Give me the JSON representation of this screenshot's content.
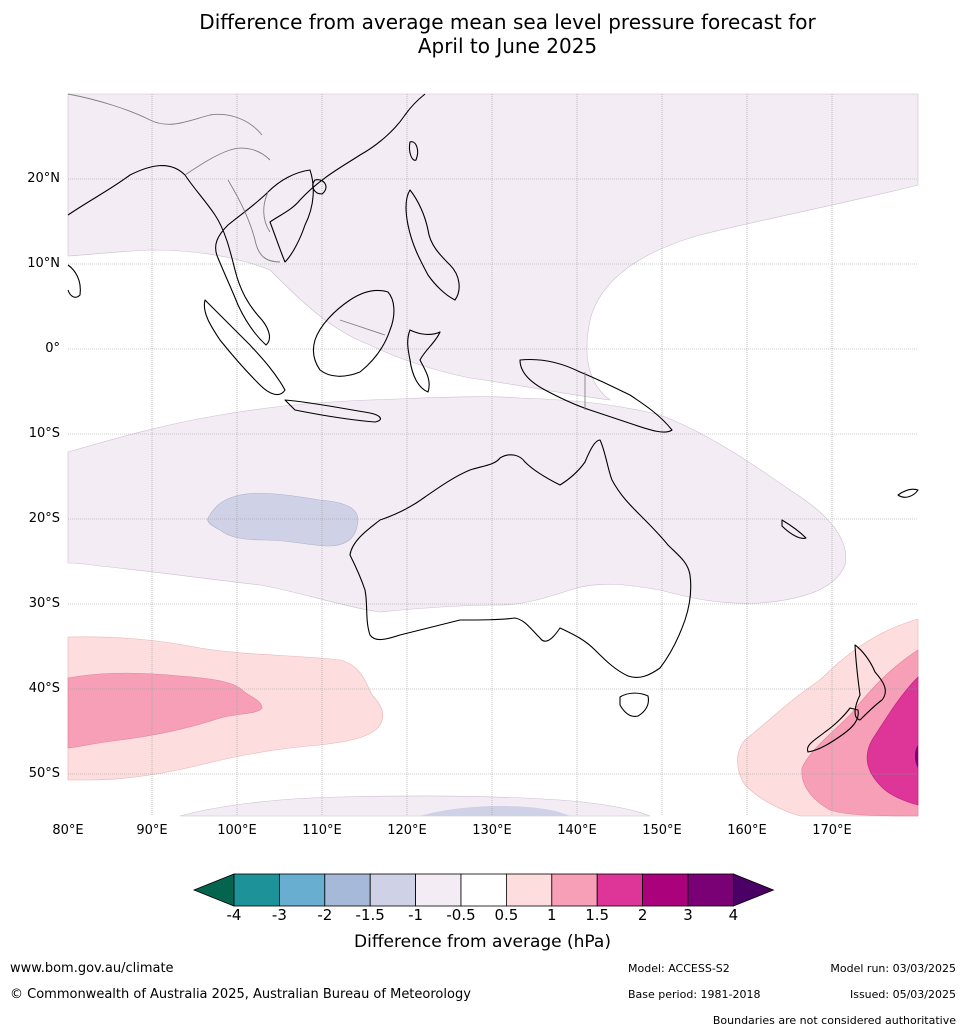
{
  "title": {
    "line1": "Difference from average mean sea level pressure forecast for",
    "line2": "April to June 2025"
  },
  "map": {
    "lat_labels": [
      "20°N",
      "10°N",
      "0°",
      "10°S",
      "20°S",
      "30°S",
      "40°S",
      "50°S"
    ],
    "lon_labels": [
      "80°E",
      "90°E",
      "100°E",
      "110°E",
      "120°E",
      "130°E",
      "140°E",
      "150°E",
      "160°E",
      "170°E"
    ],
    "anomaly_regions": [
      {
        "category": "-1 to -0.5",
        "color": "#f3ecf4",
        "description": "North-west Pacific / South China Sea band"
      },
      {
        "category": "-1 to -0.5",
        "color": "#f3ecf4",
        "description": "Indian Ocean to Coral Sea band"
      },
      {
        "category": "-1.5 to -1",
        "color": "#cfd1e6",
        "description": "Eastern Indian Ocean near 20°S"
      },
      {
        "category": "0.5 to 1",
        "color": "#fddddd",
        "description": "Southern Indian Ocean near 40°S"
      },
      {
        "category": "1 to 1.5",
        "color": "#f89fb8",
        "description": "Southern Indian Ocean near 40°S"
      },
      {
        "category": "0.5 to 1",
        "color": "#fddddd",
        "description": "Tasman Sea / New Zealand"
      },
      {
        "category": "1 to 1.5",
        "color": "#f89fb8",
        "description": "East of New Zealand"
      },
      {
        "category": "1.5 to 2",
        "color": "#dd3598",
        "description": "East of New Zealand"
      }
    ]
  },
  "colorbar": {
    "title": "Difference from average (hPa)",
    "ticks": [
      "-4",
      "-3",
      "-2",
      "-1.5",
      "-1",
      "-0.5",
      "0.5",
      "1",
      "1.5",
      "2",
      "3",
      "4"
    ],
    "colors": {
      "below": "#04654f",
      "bins": [
        "#1d9298",
        "#68aed0",
        "#a6b9d8",
        "#cfd1e6",
        "#f3ecf4",
        "#ffffff",
        "#fddddd",
        "#f89fb8",
        "#dd3598",
        "#ac017d",
        "#7a0075"
      ],
      "above": "#4b0066"
    }
  },
  "footer": {
    "website": "www.bom.gov.au/climate",
    "copyright": "© Commonwealth of Australia 2025, Australian Bureau of Meteorology",
    "model": "Model: ACCESS-S2",
    "base_period": "Base period: 1981-2018",
    "model_run": "Model run: 03/03/2025",
    "issued": "Issued: 05/03/2025",
    "disclaimer": "Boundaries are not considered authoritative"
  }
}
